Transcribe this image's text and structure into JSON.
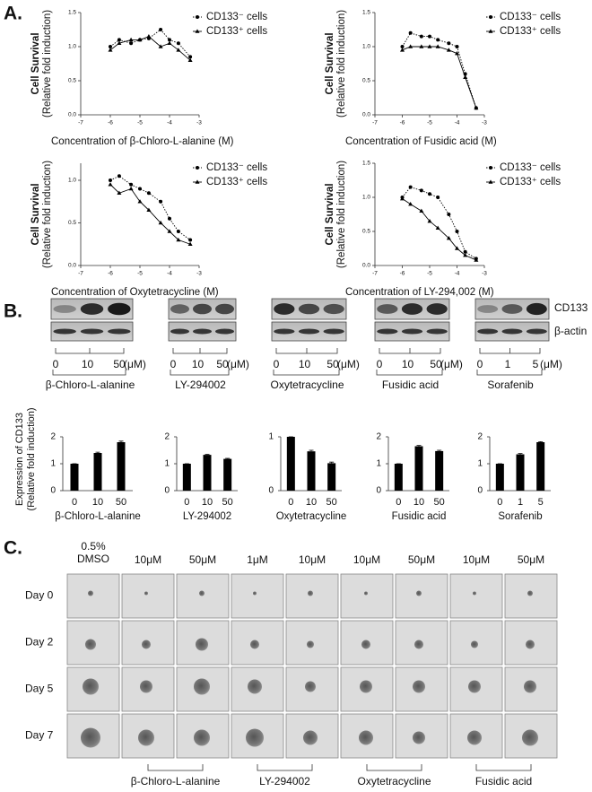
{
  "panels": [
    "A.",
    "B.",
    "C."
  ],
  "chart_data": [
    {
      "type": "line",
      "xlabel": "Concentration of β-Chloro-L-alanine (M)",
      "ylabel": [
        "Cell Survival",
        "(Relative fold induction)"
      ],
      "x": [
        -6,
        -5.7,
        -5.3,
        -5,
        -4.7,
        -4.3,
        -4,
        -3.7,
        -3.3
      ],
      "series": [
        {
          "name": "CD133⁻ cells",
          "color": "#000000",
          "marker": "circle",
          "dash": "dotted",
          "values": [
            1.0,
            1.1,
            1.05,
            1.1,
            1.12,
            1.25,
            1.1,
            1.05,
            0.85
          ]
        },
        {
          "name": "CD133⁺ cells",
          "color": "#000000",
          "marker": "triangle",
          "dash": "solid",
          "values": [
            0.95,
            1.05,
            1.1,
            1.1,
            1.15,
            1.0,
            1.05,
            0.95,
            0.8
          ]
        }
      ],
      "xlim": [
        -7,
        -3
      ],
      "xticks": [
        -7,
        -6,
        -5,
        -4,
        -3
      ],
      "ylim": [
        0,
        1.5
      ],
      "yticks": [
        {
          "value": 0,
          "label": "0.0"
        },
        {
          "value": 0.5,
          "label": "0.5"
        },
        {
          "value": 1,
          "label": "1.0"
        },
        {
          "value": 1.5,
          "label": "1.5"
        }
      ]
    },
    {
      "type": "line",
      "xlabel": "Concentration of Fusidic acid (M)",
      "ylabel": [
        "Cell Survival",
        "(Relative fold induction)"
      ],
      "x": [
        -6,
        -5.7,
        -5.3,
        -5,
        -4.7,
        -4.3,
        -4,
        -3.7,
        -3.3
      ],
      "series": [
        {
          "name": "CD133⁻ cells",
          "color": "#000000",
          "marker": "circle",
          "dash": "dotted",
          "values": [
            1.0,
            1.2,
            1.15,
            1.15,
            1.1,
            1.05,
            1.0,
            0.6,
            0.1
          ]
        },
        {
          "name": "CD133⁺ cells",
          "color": "#000000",
          "marker": "triangle",
          "dash": "solid",
          "values": [
            0.95,
            1.0,
            1.0,
            1.0,
            1.0,
            0.95,
            0.9,
            0.55,
            0.1
          ]
        }
      ],
      "xlim": [
        -7,
        -3
      ],
      "xticks": [
        -7,
        -6,
        -5,
        -4,
        -3
      ],
      "ylim": [
        0,
        1.5
      ],
      "yticks": [
        {
          "value": 0,
          "label": "0.0"
        },
        {
          "value": 0.5,
          "label": "0.5"
        },
        {
          "value": 1,
          "label": "1.0"
        },
        {
          "value": 1.5,
          "label": "1.5"
        }
      ]
    },
    {
      "type": "line",
      "xlabel": "Concentration of Oxytetracycline (M)",
      "ylabel": [
        "Cell Survival",
        "(Relative fold induction)"
      ],
      "x": [
        -6,
        -5.7,
        -5.3,
        -5,
        -4.7,
        -4.3,
        -4,
        -3.7,
        -3.3
      ],
      "series": [
        {
          "name": "CD133⁻ cells",
          "color": "#000000",
          "marker": "circle",
          "dash": "dotted",
          "values": [
            1.0,
            1.05,
            0.95,
            0.9,
            0.85,
            0.75,
            0.55,
            0.4,
            0.3
          ]
        },
        {
          "name": "CD133⁺ cells",
          "color": "#000000",
          "marker": "triangle",
          "dash": "solid",
          "values": [
            0.95,
            0.85,
            0.9,
            0.75,
            0.65,
            0.5,
            0.4,
            0.3,
            0.25
          ]
        }
      ],
      "xlim": [
        -7,
        -3
      ],
      "xticks": [
        -7,
        -6,
        -5,
        -4,
        -3
      ],
      "ylim": [
        0,
        1.2
      ],
      "yticks": [
        {
          "value": 0,
          "label": "0.0"
        },
        {
          "value": 0.5,
          "label": "0.5"
        },
        {
          "value": 1,
          "label": "1.0"
        }
      ]
    },
    {
      "type": "line",
      "xlabel": "Concentration of LY-294,002 (M)",
      "ylabel": [
        "Cell Survival",
        "(Relative fold induction)"
      ],
      "x": [
        -6,
        -5.7,
        -5.3,
        -5,
        -4.7,
        -4.3,
        -4,
        -3.7,
        -3.3
      ],
      "series": [
        {
          "name": "CD133⁻ cells",
          "color": "#000000",
          "marker": "circle",
          "dash": "dotted",
          "values": [
            1.0,
            1.15,
            1.1,
            1.05,
            1.0,
            0.75,
            0.5,
            0.2,
            0.1
          ]
        },
        {
          "name": "CD133⁺ cells",
          "color": "#000000",
          "marker": "triangle",
          "dash": "solid",
          "values": [
            0.98,
            0.9,
            0.8,
            0.65,
            0.55,
            0.4,
            0.25,
            0.15,
            0.08
          ]
        }
      ],
      "xlim": [
        -7,
        -3
      ],
      "xticks": [
        -7,
        -6,
        -5,
        -4,
        -3
      ],
      "ylim": [
        0,
        1.5
      ],
      "yticks": [
        {
          "value": 0,
          "label": "0.0"
        },
        {
          "value": 0.5,
          "label": "0.5"
        },
        {
          "value": 1,
          "label": "1.0"
        },
        {
          "value": 1.5,
          "label": "1.5"
        }
      ]
    },
    {
      "type": "bar",
      "ylabel": [
        "Expression of CD133",
        "(Relative fold induction)"
      ],
      "categories": [
        "0",
        "10",
        "50"
      ],
      "values": [
        1.0,
        1.4,
        1.8
      ],
      "errors": [
        0,
        0.03,
        0.04
      ],
      "xlabel": "β-Chloro-L-alanine",
      "ylim": [
        0,
        2
      ],
      "yticks": [
        0,
        1,
        2
      ],
      "color": "#000000"
    },
    {
      "type": "bar",
      "categories": [
        "0",
        "10",
        "50"
      ],
      "values": [
        1.0,
        1.33,
        1.18
      ],
      "errors": [
        0,
        0.02,
        0.02
      ],
      "xlabel": "LY-294002",
      "ylim": [
        0,
        2
      ],
      "yticks": [
        0,
        1,
        2
      ],
      "color": "#000000"
    },
    {
      "type": "bar",
      "categories": [
        "0",
        "10",
        "50"
      ],
      "values": [
        1.0,
        0.73,
        0.51
      ],
      "errors": [
        0,
        0.02,
        0.02
      ],
      "xlabel": "Oxytetracycline",
      "ylim": [
        0,
        1
      ],
      "yticks": [
        0,
        1
      ],
      "color": "#000000"
    },
    {
      "type": "bar",
      "categories": [
        "0",
        "10",
        "50"
      ],
      "values": [
        1.0,
        1.65,
        1.47
      ],
      "errors": [
        0,
        0.03,
        0.03
      ],
      "xlabel": "Fusidic acid",
      "ylim": [
        0,
        2
      ],
      "yticks": [
        0,
        1,
        2
      ],
      "color": "#000000"
    },
    {
      "type": "bar",
      "categories": [
        "0",
        "1",
        "5"
      ],
      "values": [
        1.0,
        1.35,
        1.8
      ],
      "errors": [
        0,
        0.03,
        0.02
      ],
      "xlabel": "Sorafenib",
      "ylim": [
        0,
        2
      ],
      "yticks": [
        0,
        1,
        2
      ],
      "color": "#000000"
    }
  ],
  "blots": {
    "rows": [
      "CD133",
      "β-actin"
    ],
    "groups": [
      {
        "doses": [
          "0",
          "10",
          "50"
        ],
        "unit": "(μM)",
        "drug": "β-Chloro-L-alanine"
      },
      {
        "doses": [
          "0",
          "10",
          "50"
        ],
        "unit": "(μM)",
        "drug": "LY-294002"
      },
      {
        "doses": [
          "0",
          "10",
          "50"
        ],
        "unit": "(μM)",
        "drug": "Oxytetracycline"
      },
      {
        "doses": [
          "0",
          "10",
          "50"
        ],
        "unit": "(μM)",
        "drug": "Fusidic acid"
      },
      {
        "doses": [
          "0",
          "1",
          "5"
        ],
        "unit": "(μM)",
        "drug": "Sorafenib"
      }
    ]
  },
  "spheroids": {
    "columns": [
      [
        "0.5%",
        "DMSO"
      ],
      [
        "10μM"
      ],
      [
        "50μM"
      ],
      [
        "1μM"
      ],
      [
        "10μM"
      ],
      [
        "10μM"
      ],
      [
        "50μM"
      ],
      [
        "10μM"
      ],
      [
        "50μM"
      ]
    ],
    "rows": [
      "Day 0",
      "Day 2",
      "Day 5",
      "Day 7"
    ],
    "groups": [
      "β-Chloro-L-alanine",
      "LY-294002",
      "Oxytetracycline",
      "Fusidic acid"
    ]
  }
}
